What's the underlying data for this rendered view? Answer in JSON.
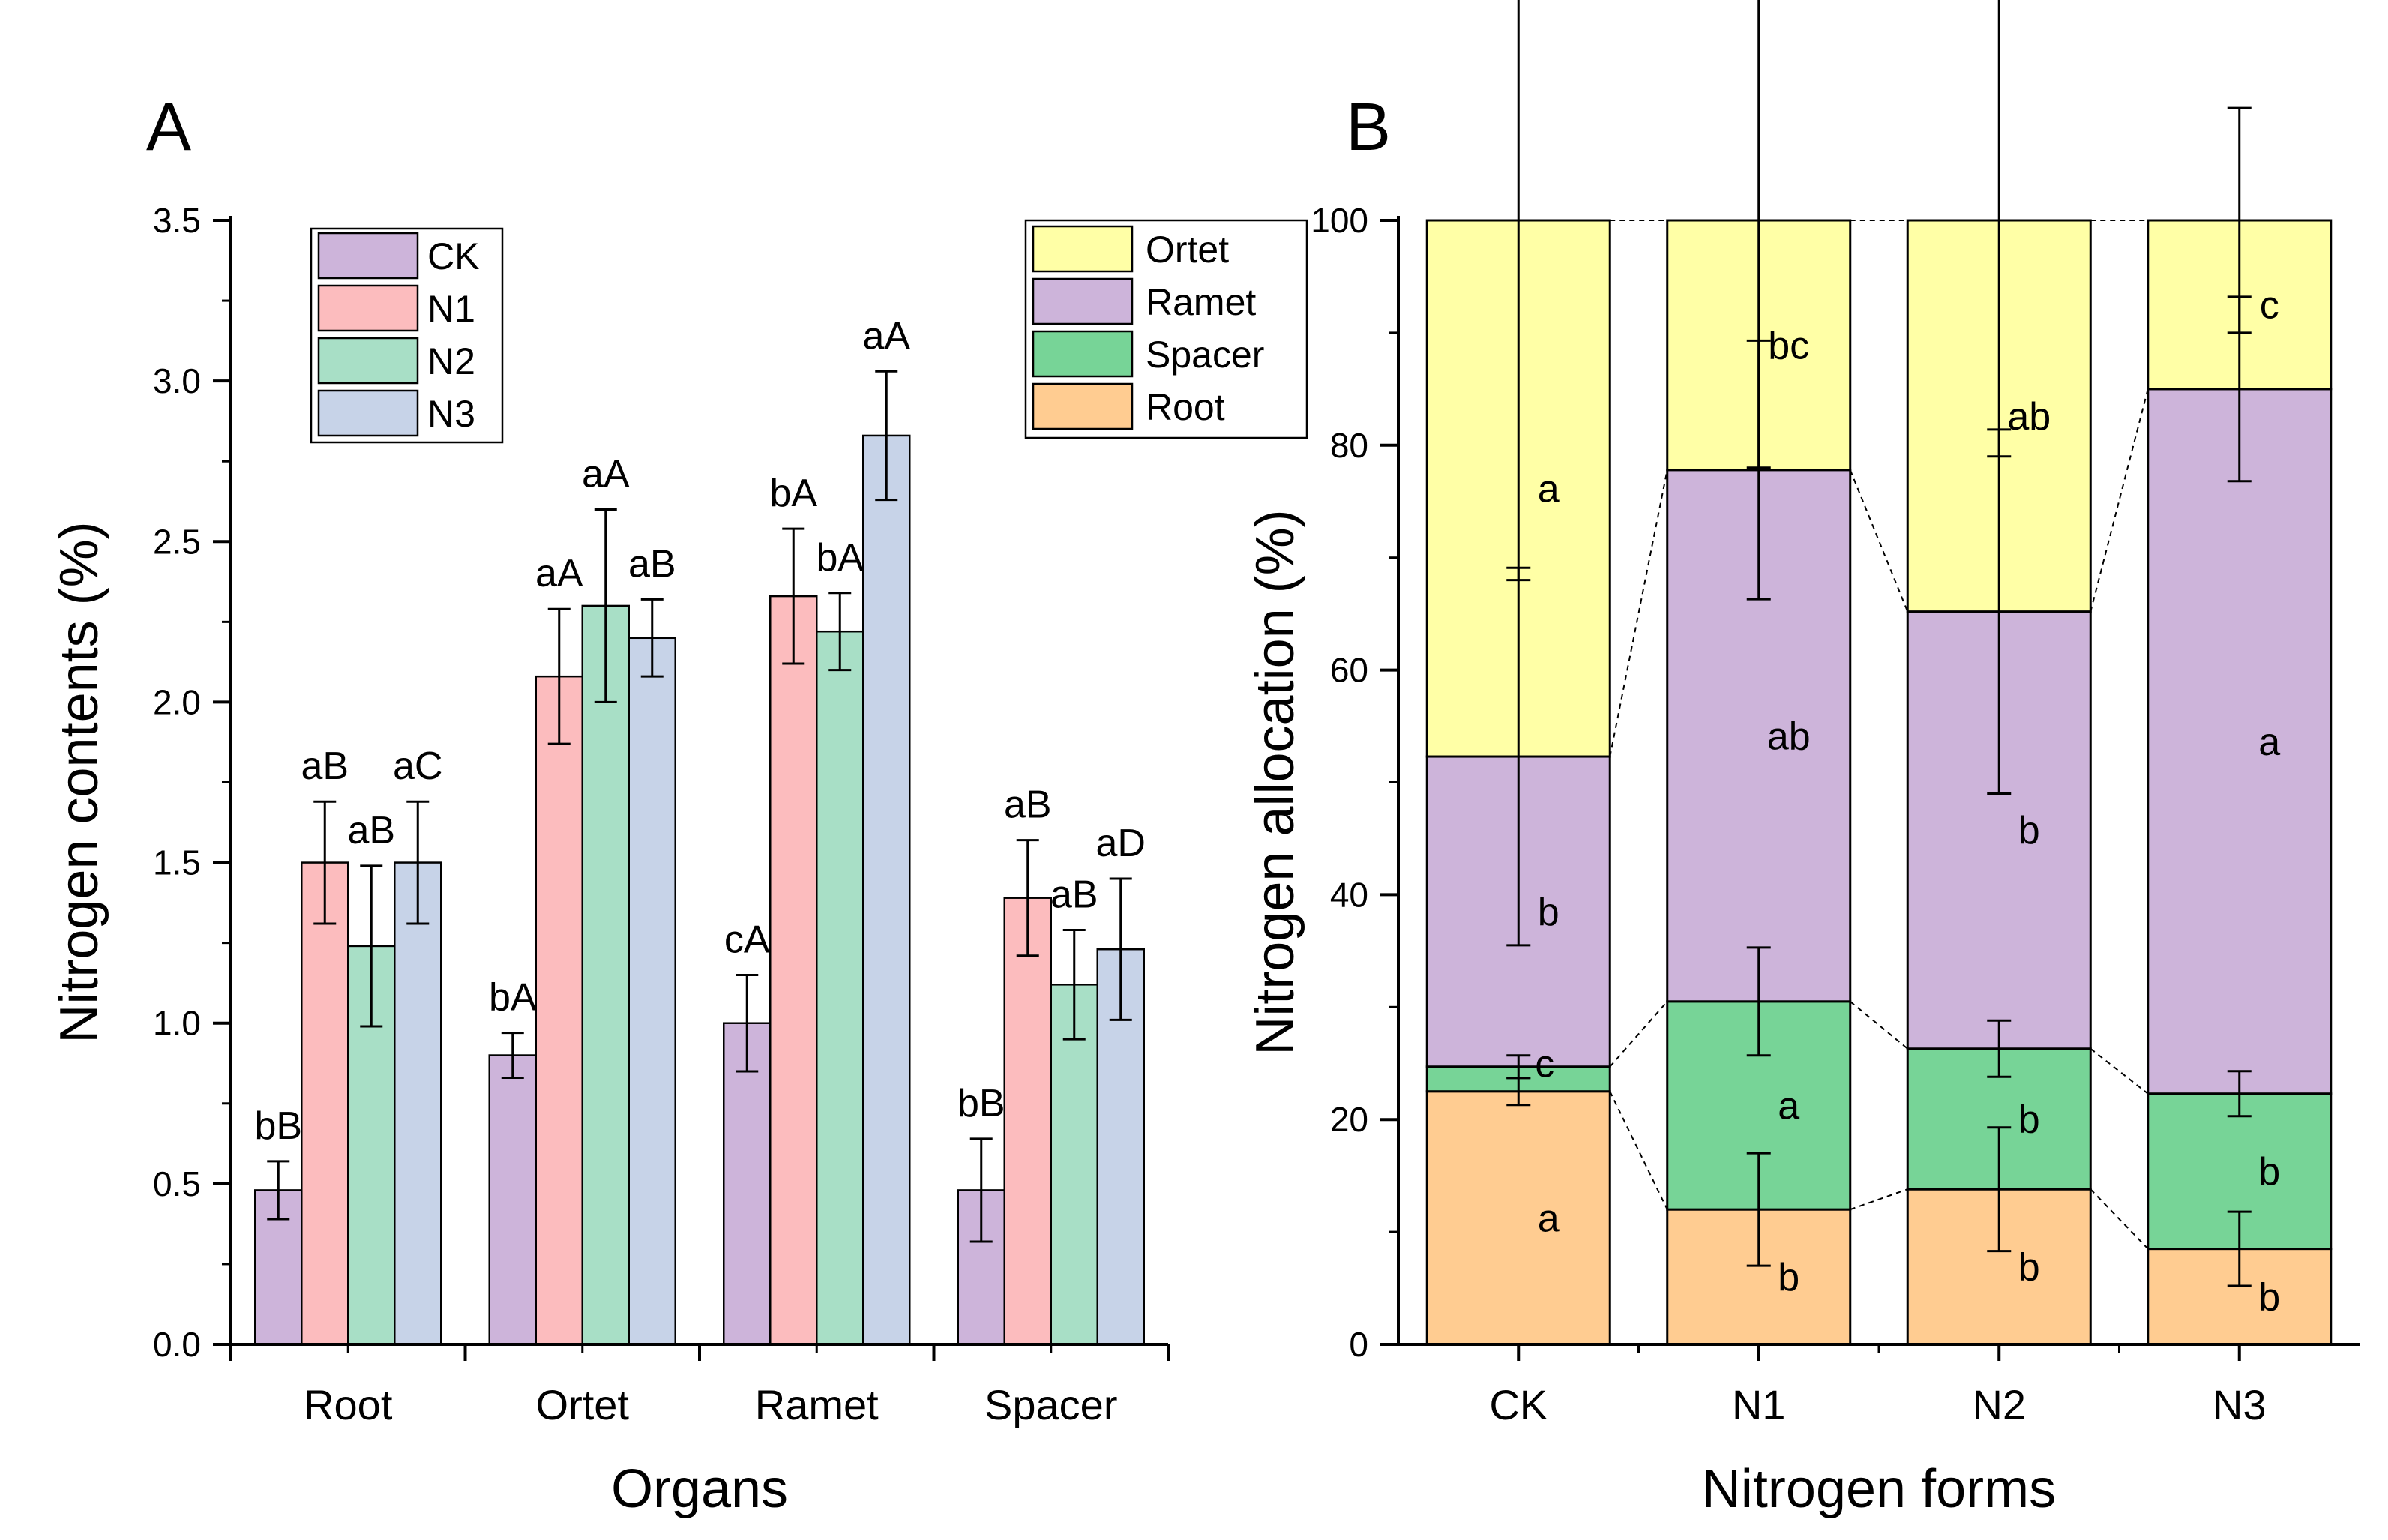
{
  "chart_data": [
    {
      "panel_label": "A",
      "type": "bar",
      "xlabel": "Organs",
      "ylabel": "Nitrogen contents (%)",
      "ylim": [
        0,
        3.5
      ],
      "yticks": [
        "0.0",
        "0.5",
        "1.0",
        "1.5",
        "2.0",
        "2.5",
        "3.0",
        "3.5"
      ],
      "categories": [
        "Root",
        "Ortet",
        "Ramet",
        "Spacer"
      ],
      "legend_position": "top-left",
      "series": [
        {
          "name": "CK",
          "color": "#CDB4DA",
          "values": [
            0.48,
            0.9,
            1.0,
            0.48
          ],
          "errors": [
            0.09,
            0.07,
            0.15,
            0.16
          ],
          "labels": [
            "bB",
            "bA",
            "cA",
            "bB"
          ]
        },
        {
          "name": "N1",
          "color": "#FCBCBE",
          "values": [
            1.5,
            2.08,
            2.33,
            1.39
          ],
          "errors": [
            0.19,
            0.21,
            0.21,
            0.18
          ],
          "labels": [
            "aB",
            "aA",
            "bA",
            "aB"
          ]
        },
        {
          "name": "N2",
          "color": "#A8DFC6",
          "values": [
            1.24,
            2.3,
            2.22,
            1.12
          ],
          "errors": [
            0.25,
            0.3,
            0.12,
            0.17
          ],
          "labels": [
            "aB",
            "aA",
            "bA",
            "aB"
          ]
        },
        {
          "name": "N3",
          "color": "#C7D3E8",
          "values": [
            1.5,
            2.2,
            2.83,
            1.23
          ],
          "errors": [
            0.19,
            0.12,
            0.2,
            0.22
          ],
          "labels": [
            "aC",
            "aB",
            "aA",
            "aD"
          ]
        }
      ]
    },
    {
      "panel_label": "B",
      "type": "stacked_bar",
      "xlabel": "Nitrogen forms",
      "ylabel": "Nitrogen allocation (%)",
      "ylim": [
        0,
        100
      ],
      "yticks": [
        "0",
        "20",
        "40",
        "60",
        "80",
        "100"
      ],
      "categories": [
        "CK",
        "N1",
        "N2",
        "N3"
      ],
      "legend_position": "top-right",
      "legend_order": [
        "Ortet",
        "Ramet",
        "Spacer",
        "Root"
      ],
      "series": [
        {
          "name": "Root",
          "color": "#FFCC91",
          "values": [
            22.5,
            12.0,
            13.8,
            8.5
          ],
          "errors": [
            1.2,
            5.0,
            5.5,
            3.3
          ],
          "labels": [
            "a",
            "b",
            "b",
            "b"
          ]
        },
        {
          "name": "Spacer",
          "color": "#77D497",
          "values": [
            2.2,
            18.5,
            12.5,
            13.8
          ],
          "errors": [
            1.0,
            4.8,
            2.5,
            2.0
          ],
          "labels": [
            "c",
            "a",
            "b",
            "b"
          ]
        },
        {
          "name": "Ramet",
          "color": "#CDB4DA",
          "values": [
            27.6,
            47.3,
            38.9,
            62.7
          ],
          "errors": [
            16.8,
            11.5,
            16.2,
            8.2
          ],
          "labels": [
            "b",
            "ab",
            "b",
            "a"
          ]
        },
        {
          "name": "Ortet",
          "color": "#FFFFA6",
          "values": [
            47.7,
            22.2,
            34.8,
            15.0
          ],
          "errors": [
            32.0,
            22.0,
            21.0,
            10.0
          ],
          "labels": [
            "a",
            "bc",
            "ab",
            "c"
          ]
        }
      ]
    }
  ]
}
